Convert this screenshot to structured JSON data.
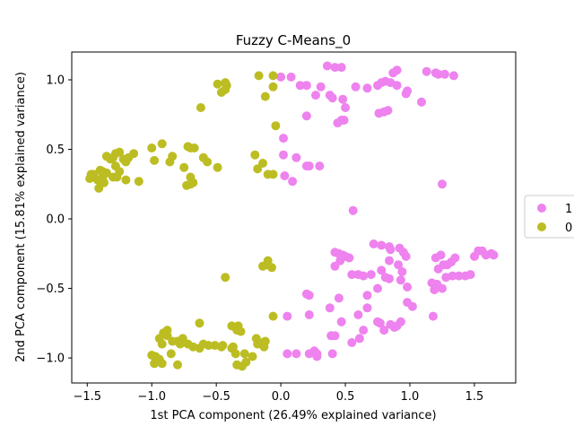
{
  "chart_data": {
    "type": "scatter",
    "title": "Fuzzy C-Means_0",
    "xlabel": "1st PCA component (26.49% explained variance)",
    "ylabel": "2nd PCA component (15.81% explained variance)",
    "xlim": [
      -1.62,
      1.82
    ],
    "ylim": [
      -1.18,
      1.2
    ],
    "xticks": [
      -1.5,
      -1.0,
      -0.5,
      0.0,
      0.5,
      1.0,
      1.5
    ],
    "xtick_labels": [
      "−1.5",
      "−1.0",
      "−0.5",
      "0.0",
      "0.5",
      "1.0",
      "1.5"
    ],
    "yticks": [
      -1.0,
      -0.5,
      0.0,
      0.5,
      1.0
    ],
    "ytick_labels": [
      "−1.0",
      "−0.5",
      "0.0",
      "0.5",
      "1.0"
    ],
    "grid": false,
    "legend_position": "right-outside",
    "series": [
      {
        "name": "1",
        "color": "#ee82ee",
        "points": [
          [
            0.0,
            1.02
          ],
          [
            0.08,
            1.02
          ],
          [
            0.15,
            0.96
          ],
          [
            0.2,
            0.96
          ],
          [
            0.27,
            0.89
          ],
          [
            0.31,
            0.95
          ],
          [
            0.36,
            1.1
          ],
          [
            0.42,
            1.09
          ],
          [
            0.47,
            1.09
          ],
          [
            0.38,
            0.89
          ],
          [
            0.4,
            0.87
          ],
          [
            0.48,
            0.86
          ],
          [
            0.5,
            0.8
          ],
          [
            0.47,
            0.71
          ],
          [
            0.49,
            0.71
          ],
          [
            0.44,
            0.69
          ],
          [
            0.2,
            0.74
          ],
          [
            0.58,
            0.95
          ],
          [
            0.67,
            0.94
          ],
          [
            0.75,
            0.96
          ],
          [
            0.78,
            0.98
          ],
          [
            0.81,
            0.99
          ],
          [
            0.87,
            1.05
          ],
          [
            0.9,
            1.07
          ],
          [
            0.85,
            0.98
          ],
          [
            0.9,
            0.96
          ],
          [
            0.98,
            0.92
          ],
          [
            0.97,
            0.9
          ],
          [
            1.09,
            0.84
          ],
          [
            0.8,
            0.77
          ],
          [
            0.83,
            0.78
          ],
          [
            0.76,
            0.76
          ],
          [
            1.13,
            1.06
          ],
          [
            1.2,
            1.05
          ],
          [
            1.22,
            1.04
          ],
          [
            1.27,
            1.04
          ],
          [
            1.34,
            1.03
          ],
          [
            0.02,
            0.58
          ],
          [
            0.02,
            0.46
          ],
          [
            0.12,
            0.44
          ],
          [
            0.2,
            0.38
          ],
          [
            0.22,
            0.38
          ],
          [
            0.3,
            0.38
          ],
          [
            0.03,
            0.31
          ],
          [
            0.09,
            0.27
          ],
          [
            1.25,
            0.25
          ],
          [
            0.56,
            0.06
          ],
          [
            0.42,
            -0.24
          ],
          [
            0.45,
            -0.25
          ],
          [
            0.48,
            -0.26
          ],
          [
            0.5,
            -0.27
          ],
          [
            0.53,
            -0.28
          ],
          [
            0.46,
            -0.3
          ],
          [
            0.42,
            -0.34
          ],
          [
            0.55,
            -0.4
          ],
          [
            0.6,
            -0.4
          ],
          [
            0.64,
            -0.41
          ],
          [
            0.7,
            -0.4
          ],
          [
            0.72,
            -0.18
          ],
          [
            0.78,
            -0.19
          ],
          [
            0.84,
            -0.2
          ],
          [
            0.92,
            -0.21
          ],
          [
            0.95,
            -0.24
          ],
          [
            0.97,
            -0.27
          ],
          [
            0.85,
            -0.22
          ],
          [
            0.84,
            -0.3
          ],
          [
            0.91,
            -0.33
          ],
          [
            0.94,
            -0.38
          ],
          [
            0.78,
            -0.37
          ],
          [
            0.81,
            -0.42
          ],
          [
            0.84,
            -0.43
          ],
          [
            0.93,
            -0.44
          ],
          [
            0.98,
            -0.49
          ],
          [
            0.98,
            -0.6
          ],
          [
            1.02,
            -0.63
          ],
          [
            0.75,
            -0.5
          ],
          [
            0.67,
            -0.55
          ],
          [
            0.67,
            -0.64
          ],
          [
            1.2,
            -0.28
          ],
          [
            1.24,
            -0.26
          ],
          [
            1.26,
            -0.33
          ],
          [
            1.29,
            -0.33
          ],
          [
            1.32,
            -0.31
          ],
          [
            1.35,
            -0.28
          ],
          [
            1.22,
            -0.36
          ],
          [
            1.28,
            -0.42
          ],
          [
            1.33,
            -0.41
          ],
          [
            1.38,
            -0.41
          ],
          [
            1.43,
            -0.41
          ],
          [
            1.47,
            -0.4
          ],
          [
            1.5,
            -0.27
          ],
          [
            1.53,
            -0.23
          ],
          [
            1.56,
            -0.23
          ],
          [
            1.59,
            -0.26
          ],
          [
            1.63,
            -0.25
          ],
          [
            1.65,
            -0.26
          ],
          [
            1.17,
            -0.46
          ],
          [
            1.21,
            -0.47
          ],
          [
            1.25,
            -0.5
          ],
          [
            1.19,
            -0.51
          ],
          [
            0.2,
            -0.54
          ],
          [
            0.22,
            -0.55
          ],
          [
            0.38,
            -0.64
          ],
          [
            0.45,
            -0.57
          ],
          [
            0.47,
            -0.74
          ],
          [
            0.64,
            -0.8
          ],
          [
            0.6,
            -0.69
          ],
          [
            0.75,
            -0.74
          ],
          [
            0.77,
            -0.75
          ],
          [
            0.8,
            -0.8
          ],
          [
            0.85,
            -0.76
          ],
          [
            0.88,
            -0.78
          ],
          [
            0.9,
            -0.77
          ],
          [
            0.93,
            -0.74
          ],
          [
            1.18,
            -0.7
          ],
          [
            0.05,
            -0.7
          ],
          [
            0.22,
            -0.69
          ],
          [
            0.39,
            -0.84
          ],
          [
            0.42,
            -0.84
          ],
          [
            0.55,
            -0.89
          ],
          [
            0.61,
            -0.86
          ],
          [
            0.05,
            -0.97
          ],
          [
            0.12,
            -0.97
          ],
          [
            0.22,
            -0.97
          ],
          [
            0.26,
            -0.95
          ],
          [
            0.28,
            -0.97
          ],
          [
            0.28,
            -0.99
          ],
          [
            0.4,
            -0.97
          ]
        ]
      },
      {
        "name": "0",
        "color": "#bcbd22",
        "points": [
          [
            -0.49,
            0.97
          ],
          [
            -0.46,
            0.91
          ],
          [
            -0.43,
            0.93
          ],
          [
            -0.43,
            0.98
          ],
          [
            -0.42,
            0.96
          ],
          [
            -0.17,
            1.03
          ],
          [
            -0.06,
            1.03
          ],
          [
            -0.12,
            0.88
          ],
          [
            -0.06,
            0.95
          ],
          [
            -0.62,
            0.8
          ],
          [
            -0.04,
            0.67
          ],
          [
            -1.14,
            0.47
          ],
          [
            -1.18,
            0.44
          ],
          [
            -1.2,
            0.41
          ],
          [
            -1.22,
            0.43
          ],
          [
            -1.25,
            0.48
          ],
          [
            -1.28,
            0.47
          ],
          [
            -1.3,
            0.44
          ],
          [
            -1.32,
            0.43
          ],
          [
            -1.35,
            0.45
          ],
          [
            -1.28,
            0.38
          ],
          [
            -1.25,
            0.34
          ],
          [
            -1.2,
            0.28
          ],
          [
            -1.1,
            0.27
          ],
          [
            -1.27,
            0.3
          ],
          [
            -1.3,
            0.3
          ],
          [
            -1.35,
            0.33
          ],
          [
            -1.38,
            0.34
          ],
          [
            -1.38,
            0.3
          ],
          [
            -1.42,
            0.28
          ],
          [
            -1.45,
            0.32
          ],
          [
            -1.48,
            0.29
          ],
          [
            -1.47,
            0.32
          ],
          [
            -1.4,
            0.35
          ],
          [
            -1.37,
            0.26
          ],
          [
            -1.41,
            0.22
          ],
          [
            -1.0,
            0.51
          ],
          [
            -0.92,
            0.54
          ],
          [
            -0.72,
            0.52
          ],
          [
            -0.7,
            0.51
          ],
          [
            -0.67,
            0.51
          ],
          [
            -0.84,
            0.45
          ],
          [
            -0.86,
            0.41
          ],
          [
            -0.75,
            0.37
          ],
          [
            -0.98,
            0.42
          ],
          [
            -0.7,
            0.3
          ],
          [
            -0.7,
            0.25
          ],
          [
            -0.73,
            0.24
          ],
          [
            -0.68,
            0.26
          ],
          [
            -0.6,
            0.44
          ],
          [
            -0.57,
            0.41
          ],
          [
            -0.49,
            0.37
          ],
          [
            -0.2,
            0.46
          ],
          [
            -0.14,
            0.4
          ],
          [
            -0.18,
            0.36
          ],
          [
            -0.1,
            0.32
          ],
          [
            -0.06,
            0.32
          ],
          [
            -0.1,
            -0.3
          ],
          [
            -0.11,
            -0.33
          ],
          [
            -0.07,
            -0.35
          ],
          [
            -0.14,
            -0.34
          ],
          [
            -0.43,
            -0.42
          ],
          [
            -0.06,
            -0.7
          ],
          [
            -1.0,
            -0.98
          ],
          [
            -0.97,
            -0.99
          ],
          [
            -0.94,
            -1.01
          ],
          [
            -0.98,
            -1.04
          ],
          [
            -0.92,
            -1.04
          ],
          [
            -0.85,
            -0.97
          ],
          [
            -0.8,
            -1.05
          ],
          [
            -0.88,
            -0.84
          ],
          [
            -0.91,
            -0.82
          ],
          [
            -0.88,
            -0.8
          ],
          [
            -0.94,
            -0.86
          ],
          [
            -0.92,
            -0.9
          ],
          [
            -0.84,
            -0.88
          ],
          [
            -0.8,
            -0.88
          ],
          [
            -0.76,
            -0.86
          ],
          [
            -0.78,
            -0.9
          ],
          [
            -0.72,
            -0.9
          ],
          [
            -0.68,
            -0.92
          ],
          [
            -0.63,
            -0.93
          ],
          [
            -0.63,
            -0.75
          ],
          [
            -0.6,
            -0.9
          ],
          [
            -0.56,
            -0.91
          ],
          [
            -0.51,
            -0.91
          ],
          [
            -0.45,
            -0.91
          ],
          [
            -0.38,
            -0.93
          ],
          [
            -0.37,
            -0.92
          ],
          [
            -0.38,
            -0.77
          ],
          [
            -0.33,
            -0.77
          ],
          [
            -0.31,
            -0.81
          ],
          [
            -0.34,
            -0.8
          ],
          [
            -0.19,
            -0.86
          ],
          [
            -0.14,
            -0.89
          ],
          [
            -0.18,
            -0.9
          ],
          [
            -0.13,
            -0.92
          ],
          [
            -0.12,
            -0.88
          ],
          [
            -0.28,
            -0.97
          ],
          [
            -0.22,
            -0.99
          ],
          [
            -0.35,
            -0.97
          ],
          [
            -0.27,
            -1.03
          ],
          [
            -0.3,
            -1.06
          ],
          [
            -0.34,
            -1.05
          ],
          [
            -0.46,
            -0.92
          ]
        ]
      }
    ]
  }
}
